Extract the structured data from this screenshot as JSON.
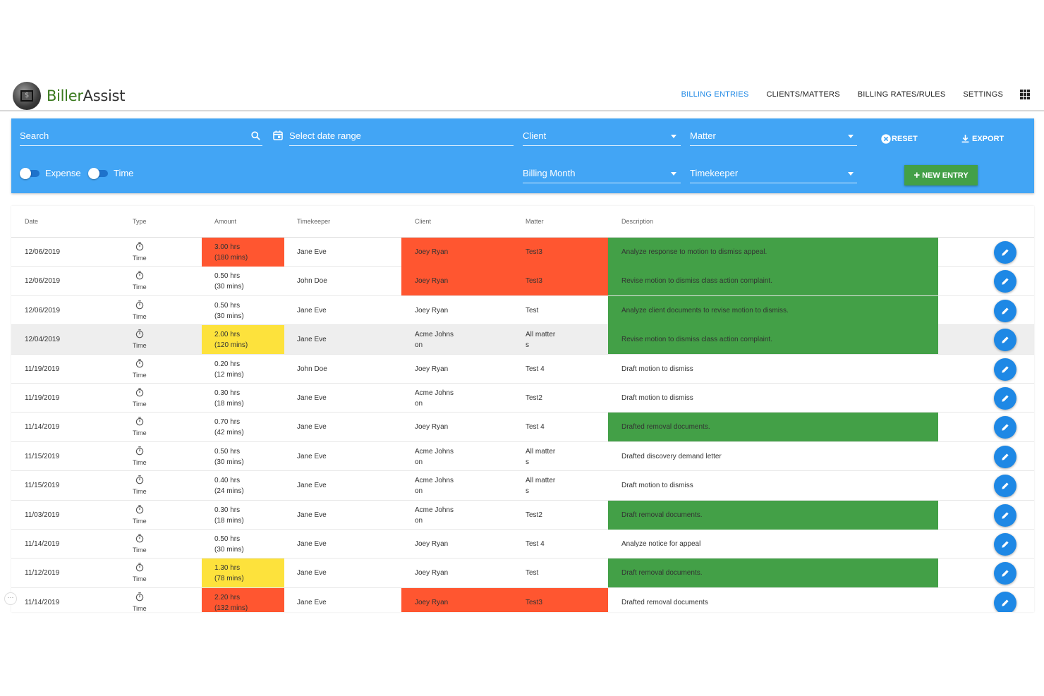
{
  "brand": {
    "part1": "Biller",
    "part2": "Assist"
  },
  "nav": {
    "items": [
      {
        "label": "BILLING ENTRIES",
        "active": true
      },
      {
        "label": "CLIENTS/MATTERS",
        "active": false
      },
      {
        "label": "BILLING RATES/RULES",
        "active": false
      },
      {
        "label": "SETTINGS",
        "active": false
      }
    ]
  },
  "filters": {
    "search_placeholder": "Search",
    "date_placeholder": "Select date range",
    "client_label": "Client",
    "matter_label": "Matter",
    "billing_month_label": "Billing Month",
    "timekeeper_label": "Timekeeper",
    "expense_label": "Expense",
    "time_label": "Time",
    "reset_label": "RESET",
    "export_label": "EXPORT",
    "new_entry_label": "NEW ENTRY"
  },
  "table": {
    "headers": [
      "Date",
      "Type",
      "Amount",
      "Timekeeper",
      "Client",
      "Matter",
      "Description"
    ],
    "rows": [
      {
        "date": "12/06/2019",
        "type": "Time",
        "amount1": "3.00 hrs",
        "amount2": "(180 mins)",
        "timekeeper": "Jane Eve",
        "client1": "Joey Ryan",
        "client2": "",
        "matter1": "Test3",
        "matter2": "",
        "description": "Analyze response to motion to dismiss appeal."
      },
      {
        "date": "12/06/2019",
        "type": "Time",
        "amount1": "0.50 hrs",
        "amount2": "(30 mins)",
        "timekeeper": "John Doe",
        "client1": "Joey Ryan",
        "client2": "",
        "matter1": "Test3",
        "matter2": "",
        "description": "Revise motion to dismiss class action complaint."
      },
      {
        "date": "12/06/2019",
        "type": "Time",
        "amount1": "0.50 hrs",
        "amount2": "(30 mins)",
        "timekeeper": "Jane Eve",
        "client1": "Joey Ryan",
        "client2": "",
        "matter1": "Test",
        "matter2": "",
        "description": "Analyze client documents to revise motion to dismiss."
      },
      {
        "date": "12/04/2019",
        "type": "Time",
        "amount1": "2.00 hrs",
        "amount2": "(120 mins)",
        "timekeeper": "Jane Eve",
        "client1": "Acme Johns",
        "client2": "on",
        "matter1": "All matter",
        "matter2": "s",
        "description": "Revise motion to dismiss class action complaint."
      },
      {
        "date": "11/19/2019",
        "type": "Time",
        "amount1": "0.20 hrs",
        "amount2": "(12 mins)",
        "timekeeper": "John Doe",
        "client1": "Joey Ryan",
        "client2": "",
        "matter1": "Test 4",
        "matter2": "",
        "description": "Draft motion to dismiss"
      },
      {
        "date": "11/19/2019",
        "type": "Time",
        "amount1": "0.30 hrs",
        "amount2": "(18 mins)",
        "timekeeper": "Jane Eve",
        "client1": "Acme Johns",
        "client2": "on",
        "matter1": "Test2",
        "matter2": "",
        "description": "Draft motion to dismiss"
      },
      {
        "date": "11/14/2019",
        "type": "Time",
        "amount1": "0.70 hrs",
        "amount2": "(42 mins)",
        "timekeeper": "Jane Eve",
        "client1": "Joey Ryan",
        "client2": "",
        "matter1": "Test 4",
        "matter2": "",
        "description": "Drafted removal documents."
      },
      {
        "date": "11/15/2019",
        "type": "Time",
        "amount1": "0.50 hrs",
        "amount2": "(30 mins)",
        "timekeeper": "Jane Eve",
        "client1": "Acme Johns",
        "client2": "on",
        "matter1": "All matter",
        "matter2": "s",
        "description": "Drafted discovery demand letter"
      },
      {
        "date": "11/15/2019",
        "type": "Time",
        "amount1": "0.40 hrs",
        "amount2": "(24 mins)",
        "timekeeper": "Jane Eve",
        "client1": "Acme Johns",
        "client2": "on",
        "matter1": "All matter",
        "matter2": "s",
        "description": "Draft motion to dismiss"
      },
      {
        "date": "11/03/2019",
        "type": "Time",
        "amount1": "0.30 hrs",
        "amount2": "(18 mins)",
        "timekeeper": "Jane Eve",
        "client1": "Acme Johns",
        "client2": "on",
        "matter1": "Test2",
        "matter2": "",
        "description": "Draft removal documents."
      },
      {
        "date": "11/14/2019",
        "type": "Time",
        "amount1": "0.50 hrs",
        "amount2": "(30 mins)",
        "timekeeper": "Jane Eve",
        "client1": "Joey Ryan",
        "client2": "",
        "matter1": "Test 4",
        "matter2": "",
        "description": "Analyze notice for appeal"
      },
      {
        "date": "11/12/2019",
        "type": "Time",
        "amount1": "1.30 hrs",
        "amount2": "(78 mins)",
        "timekeeper": "Jane Eve",
        "client1": "Joey Ryan",
        "client2": "",
        "matter1": "Test",
        "matter2": "",
        "description": "Draft removal documents."
      },
      {
        "date": "11/14/2019",
        "type": "Time",
        "amount1": "2.20 hrs",
        "amount2": "(132 mins)",
        "timekeeper": "Jane Eve",
        "client1": "Joey Ryan",
        "client2": "",
        "matter1": "Test3",
        "matter2": "",
        "description": "Drafted removal documents"
      }
    ],
    "highlights": {
      "amount": [
        "red",
        "",
        "",
        "yellow",
        "",
        "",
        "",
        "",
        "",
        "",
        "",
        "yellow",
        "red"
      ],
      "client_matter": [
        "red",
        "red",
        "",
        "",
        "",
        "",
        "",
        "",
        "",
        "",
        "",
        "",
        "red"
      ],
      "description": [
        "green",
        "green",
        "green",
        "green",
        "",
        "",
        "green",
        "",
        "",
        "green",
        "",
        "green",
        ""
      ]
    }
  },
  "colors": {
    "primary": "#42a5f5",
    "accent": "#1e88e5",
    "red": "#ff5630",
    "yellow": "#fde23c",
    "green": "#43a047"
  },
  "icons": [
    "search-icon",
    "calendar-icon",
    "stopwatch-icon",
    "edit-pencil-icon",
    "reset-x-icon",
    "download-icon",
    "apps-grid-icon",
    "plus-icon"
  ]
}
